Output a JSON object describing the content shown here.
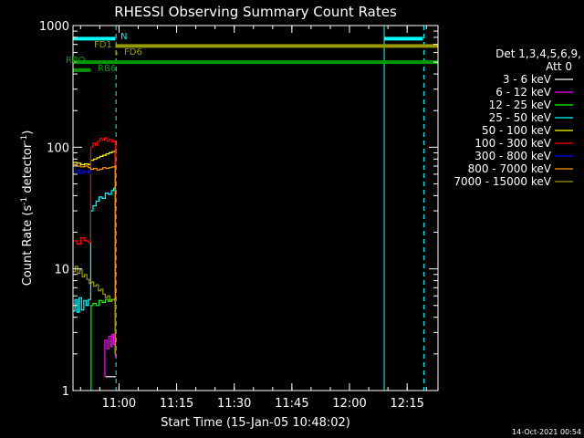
{
  "chart_data": {
    "type": "line",
    "title": "RHESSI Observing Summary Count Rates",
    "xlabel": "Start Time (15-Jan-05 10:48:02)",
    "ylabel_main": "Count Rate (s",
    "ylabel_sup1": "-1",
    "ylabel_mid": " detector",
    "ylabel_sup2": "-1",
    "ylabel_end": ")",
    "yscale": "log",
    "ylim": [
      1,
      1000
    ],
    "xlim_minutes": [
      0,
      95
    ],
    "x_ticks": [
      {
        "label": "11:00",
        "minute": 11.97
      },
      {
        "label": "11:15",
        "minute": 26.97
      },
      {
        "label": "11:30",
        "minute": 41.97
      },
      {
        "label": "11:45",
        "minute": 56.97
      },
      {
        "label": "12:00",
        "minute": 71.97
      },
      {
        "label": "12:15",
        "minute": 86.97
      }
    ],
    "y_ticks": [
      {
        "label": "1",
        "value": 1
      },
      {
        "label": "10",
        "value": 10
      },
      {
        "label": "100",
        "value": 100
      },
      {
        "label": "1000",
        "value": 1000
      }
    ],
    "legend_header": [
      "Det 1,3,4,5,6,9,",
      "Att 0"
    ],
    "legend_placement": "right",
    "series": [
      {
        "name": "3 - 6 keV",
        "color": "#ffffff",
        "points": [
          [
            8.5,
            1.3
          ],
          [
            9.5,
            1.3
          ],
          [
            10.2,
            1.3
          ],
          [
            11,
            1.3
          ],
          [
            11.2,
            1.3
          ]
        ]
      },
      {
        "name": "6 - 12 keV",
        "color": "#ff00ff",
        "points": [
          [
            8.0,
            1.3
          ],
          [
            8.3,
            2.6
          ],
          [
            8.8,
            2.2
          ],
          [
            9.3,
            2.8
          ],
          [
            9.8,
            2.3
          ],
          [
            10.2,
            2.9
          ],
          [
            10.6,
            2.4
          ],
          [
            11.0,
            1.9
          ],
          [
            11.2,
            1.9
          ]
        ]
      },
      {
        "name": "12 - 25 keV",
        "color": "#00ff00",
        "points": [
          [
            4.6,
            1.0
          ],
          [
            4.7,
            5.0
          ],
          [
            5.2,
            5.2
          ],
          [
            6.0,
            5.0
          ],
          [
            6.8,
            5.5
          ],
          [
            7.6,
            5.3
          ],
          [
            8.4,
            5.6
          ],
          [
            9.2,
            5.4
          ],
          [
            10.0,
            5.6
          ],
          [
            10.8,
            5.7
          ],
          [
            11.0,
            2.0
          ],
          [
            11.2,
            2.0
          ]
        ]
      },
      {
        "name": "25 - 50 keV",
        "color": "#00ffff",
        "points": [
          [
            0,
            4.5
          ],
          [
            0.5,
            5.6
          ],
          [
            1.0,
            4.4
          ],
          [
            1.6,
            5.8
          ],
          [
            2.2,
            4.6
          ],
          [
            2.8,
            5.5
          ],
          [
            3.4,
            5.0
          ],
          [
            4.0,
            5.6
          ],
          [
            4.6,
            30
          ],
          [
            5.2,
            33
          ],
          [
            6.0,
            36
          ],
          [
            6.8,
            39
          ],
          [
            7.6,
            38
          ],
          [
            8.4,
            42
          ],
          [
            9.2,
            41
          ],
          [
            10.0,
            44
          ],
          [
            10.6,
            46
          ],
          [
            10.9,
            47
          ],
          [
            11.0,
            2.0
          ],
          [
            11.2,
            2.0
          ]
        ]
      },
      {
        "name": "50 - 100 keV",
        "color": "#ffff00",
        "points": [
          [
            0,
            75
          ],
          [
            1,
            74
          ],
          [
            2,
            72
          ],
          [
            3,
            73
          ],
          [
            4,
            72
          ],
          [
            4.6,
            78
          ],
          [
            5.4,
            80
          ],
          [
            6.2,
            82
          ],
          [
            7.0,
            84
          ],
          [
            7.8,
            86
          ],
          [
            8.6,
            88
          ],
          [
            9.4,
            90
          ],
          [
            10.2,
            92
          ],
          [
            10.9,
            94
          ],
          [
            11.0,
            2.0
          ]
        ]
      },
      {
        "name": "100 - 300 keV",
        "color": "#ff0000",
        "points": [
          [
            0,
            17
          ],
          [
            1,
            16
          ],
          [
            2,
            18
          ],
          [
            3,
            17
          ],
          [
            4,
            16.5
          ],
          [
            4.6,
            100
          ],
          [
            5.2,
            108
          ],
          [
            5.8,
            104
          ],
          [
            6.4,
            112
          ],
          [
            7.0,
            118
          ],
          [
            7.6,
            114
          ],
          [
            8.2,
            120
          ],
          [
            8.8,
            112
          ],
          [
            9.4,
            116
          ],
          [
            10.0,
            110
          ],
          [
            10.6,
            113
          ],
          [
            10.9,
            112
          ],
          [
            11.0,
            2.0
          ]
        ]
      },
      {
        "name": "300 - 800 keV",
        "color": "#0000ff",
        "points": [
          [
            0,
            63
          ],
          [
            0.8,
            65
          ],
          [
            1.6,
            61
          ],
          [
            2.4,
            64
          ],
          [
            3.2,
            62
          ],
          [
            4.0,
            64
          ],
          [
            4.6,
            60
          ]
        ]
      },
      {
        "name": "800 - 7000 keV",
        "color": "#ff9900",
        "points": [
          [
            0,
            72
          ],
          [
            1,
            70
          ],
          [
            2,
            69
          ],
          [
            3,
            70
          ],
          [
            4,
            68
          ],
          [
            4.6,
            66
          ],
          [
            5.4,
            67
          ],
          [
            6.2,
            65
          ],
          [
            7.0,
            66
          ],
          [
            7.8,
            68
          ],
          [
            8.6,
            67
          ],
          [
            9.4,
            68
          ],
          [
            10.2,
            69
          ],
          [
            10.9,
            70
          ],
          [
            11.0,
            2.0
          ],
          [
            11.2,
            2.0
          ]
        ]
      },
      {
        "name": "7000 - 15000 keV",
        "color": "#999900",
        "points": [
          [
            0,
            9.5
          ],
          [
            0.6,
            10.5
          ],
          [
            1.2,
            9.2
          ],
          [
            1.8,
            9.8
          ],
          [
            2.4,
            8.6
          ],
          [
            3.0,
            9.0
          ],
          [
            3.6,
            8.2
          ],
          [
            4.2,
            7.6
          ],
          [
            4.8,
            7.8
          ],
          [
            5.4,
            7.2
          ],
          [
            6.0,
            7.4
          ],
          [
            6.6,
            6.6
          ],
          [
            7.2,
            6.8
          ],
          [
            7.8,
            6.2
          ],
          [
            8.4,
            5.8
          ],
          [
            9.0,
            6.0
          ],
          [
            9.6,
            5.4
          ],
          [
            10.2,
            5.6
          ],
          [
            10.9,
            5.4
          ],
          [
            11.0,
            2.0
          ],
          [
            11.2,
            2.0
          ]
        ]
      }
    ],
    "flags": [
      {
        "label": "N",
        "color": "#00ffff",
        "segments": [
          [
            0,
            11
          ],
          [
            81,
            91
          ]
        ],
        "level": 780
      },
      {
        "label": "FD1",
        "color": "#999900",
        "segments": [
          [
            11,
            95
          ]
        ],
        "level": 680
      },
      {
        "label": "FD6",
        "color": "#999900",
        "segments": [
          [
            11,
            11.5
          ]
        ],
        "level": 590
      },
      {
        "label": "RBO",
        "color": "#009900",
        "segments": [
          [
            0,
            95
          ]
        ],
        "level": 500
      },
      {
        "label": "RB6",
        "color": "#009900",
        "segments": [
          [
            0,
            4.5
          ]
        ],
        "level": 430
      }
    ],
    "vlines": [
      {
        "minute": 11.2,
        "style": "dashed",
        "color": "#00ffff"
      },
      {
        "minute": 81.0,
        "style": "solid",
        "color": "#00ffff"
      },
      {
        "minute": 91.3,
        "style": "dashed",
        "color": "#00ffff"
      }
    ],
    "footer_date": "14-Oct-2021 00:54"
  }
}
